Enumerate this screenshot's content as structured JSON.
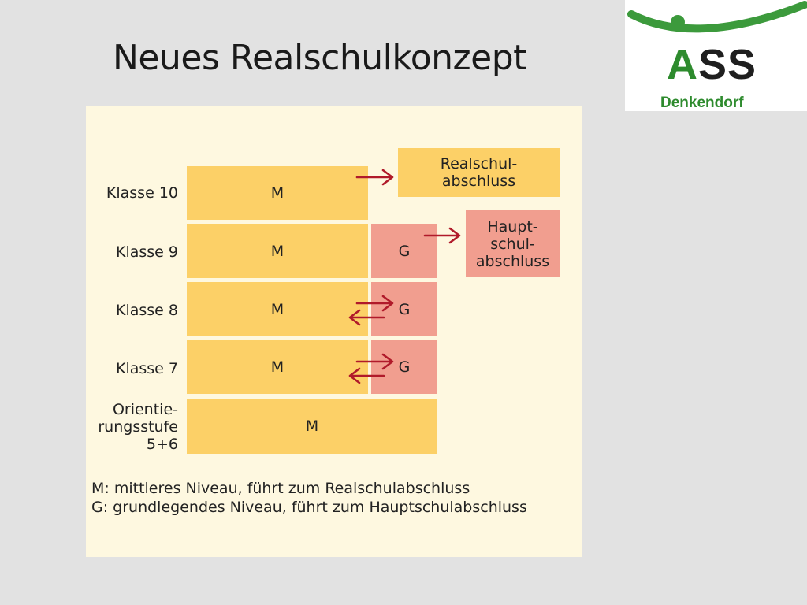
{
  "slide": {
    "title": "Neues Realschulkonzept"
  },
  "logo": {
    "main_a": "A",
    "main_ss": "SS",
    "sub": "Denkendorf",
    "colors": {
      "green": "#2e8b2e",
      "dark": "#1f1f1f"
    },
    "icon": "stick-figure-arc-icon"
  },
  "diagram": {
    "rows": [
      {
        "label": "Klasse 10",
        "m": "M",
        "g": ""
      },
      {
        "label": "Klasse 9",
        "m": "M",
        "g": "G"
      },
      {
        "label": "Klasse 8",
        "m": "M",
        "g": "G"
      },
      {
        "label": "Klasse 7",
        "m": "M",
        "g": "G"
      },
      {
        "label_lines": [
          "Orientie-",
          "rungsstufe",
          "5+6"
        ],
        "m": "M"
      }
    ],
    "results": {
      "realschul_lines": [
        "Realschul-",
        "abschluss"
      ],
      "haupt_lines": [
        "Haupt-",
        "schul-",
        "abschluss"
      ]
    },
    "legend": [
      "M: mittleres Niveau, führt zum Realschulabschluss",
      "G: grundlegendes Niveau, führt zum Hauptschulabschluss"
    ],
    "colors": {
      "panel": "#fef8e0",
      "m_level": "#fcd067",
      "g_level": "#f19e8f",
      "arrow": "#b01a2a"
    }
  }
}
